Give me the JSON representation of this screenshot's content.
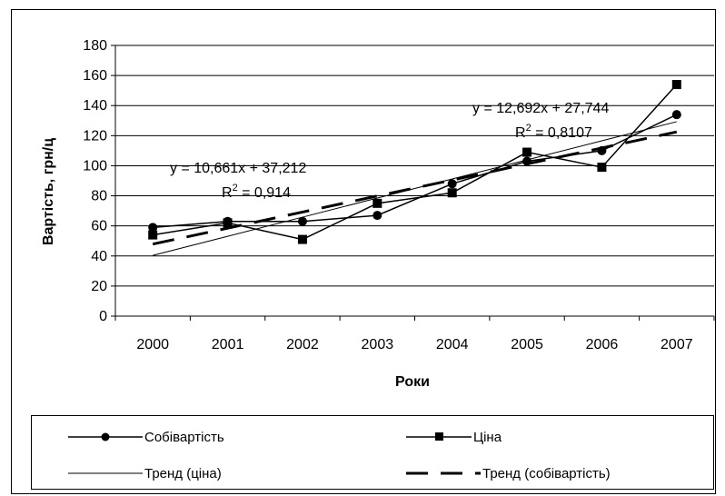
{
  "chart_data": {
    "type": "line",
    "categories": [
      "2000",
      "2001",
      "2002",
      "2003",
      "2004",
      "2005",
      "2006",
      "2007"
    ],
    "series": [
      {
        "name": "Собівартість",
        "values": [
          59,
          63,
          63,
          67,
          88,
          103,
          110,
          134
        ],
        "marker": "circle"
      },
      {
        "name": "Ціна",
        "values": [
          54,
          62,
          51,
          75,
          82,
          109,
          99,
          154
        ],
        "marker": "square"
      },
      {
        "name": "Тренд (ціна)",
        "values": [
          40.4,
          53.1,
          65.8,
          78.5,
          91.2,
          103.9,
          116.6,
          129.3
        ],
        "style": "thin"
      },
      {
        "name": "Тренд (собівартість)",
        "values": [
          47.9,
          58.5,
          69.2,
          79.9,
          90.5,
          101.2,
          111.8,
          122.5
        ],
        "style": "dashed"
      }
    ],
    "ylim": [
      0,
      180
    ],
    "yticks": [
      0,
      20,
      40,
      60,
      80,
      100,
      120,
      140,
      160,
      180
    ],
    "ylabel": "Вартість, грн/ц",
    "xlabel": "Роки",
    "grid": true,
    "legend_position": "bottom",
    "annotations": [
      {
        "id": "trend-cost",
        "line1": "y = 10,661x + 37,212",
        "line2_prefix": "R",
        "line2_sup": "2",
        "line2_suffix": " = 0,914"
      },
      {
        "id": "trend-price",
        "line1": "y = 12,692x + 27,744",
        "line2_prefix": "R",
        "line2_sup": "2",
        "line2_suffix": " = 0,8107"
      }
    ]
  },
  "legend": {
    "items": [
      {
        "label": "Собівартість",
        "symbol": "line-circle"
      },
      {
        "label": "Ціна",
        "symbol": "line-square"
      },
      {
        "label": "Тренд (ціна)",
        "symbol": "thin-line"
      },
      {
        "label": "Тренд (собівартість)",
        "symbol": "dashed-line"
      }
    ]
  },
  "colors": {
    "line": "#000000",
    "grid": "#000000",
    "background": "#ffffff"
  }
}
